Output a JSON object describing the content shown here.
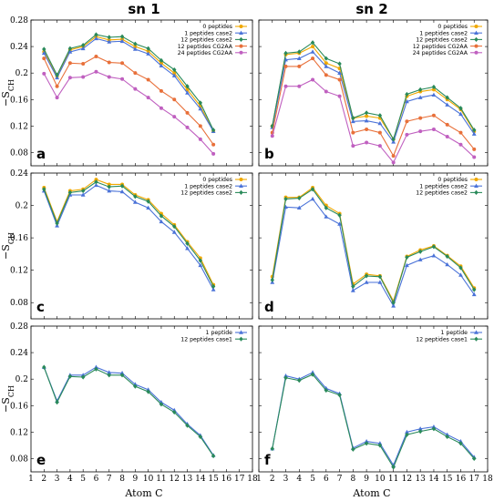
{
  "column_titles": [
    "sn 1",
    "sn 2"
  ],
  "ylabel": "−S",
  "ylabel_sub": "CH",
  "xlabel": "Atom C",
  "series_styles": {
    "0 peptides": {
      "color": "#f0a800",
      "marker": "circle"
    },
    "1 peptides case2": {
      "color": "#4a72d8",
      "marker": "triangle"
    },
    "12 peptides case2": {
      "color": "#2a8a5a",
      "marker": "diamond"
    },
    "12 peptides CG2AA": {
      "color": "#e8703a",
      "marker": "circle"
    },
    "24 peptides CG2AA": {
      "color": "#c060c0",
      "marker": "circle"
    },
    "1 peptide": {
      "color": "#4a72d8",
      "marker": "triangle"
    },
    "12 peptides case1": {
      "color": "#2a8a5a",
      "marker": "diamond"
    }
  },
  "chart_data": [
    {
      "type": "line",
      "panel": "a",
      "xlim": [
        1,
        18
      ],
      "ylim": [
        0.06,
        0.28
      ],
      "xticks": [
        1,
        2,
        3,
        4,
        5,
        6,
        7,
        8,
        9,
        10,
        11,
        12,
        13,
        14,
        15,
        16,
        17,
        18
      ],
      "yticks": [
        0.08,
        0.12,
        0.16,
        0.2,
        0.24,
        0.28
      ],
      "ytick_labels": [
        "0.08",
        "0.12",
        "0.16",
        "0.2",
        "0.24",
        "0.28"
      ],
      "x": [
        2,
        3,
        4,
        5,
        6,
        7,
        8,
        9,
        10,
        11,
        12,
        13,
        14,
        15
      ],
      "legend_position": "top-right",
      "series": [
        {
          "name": "0 peptides",
          "values": [
            0.232,
            0.195,
            0.235,
            0.24,
            0.255,
            0.25,
            0.251,
            0.24,
            0.233,
            0.215,
            0.2,
            0.175,
            0.15,
            0.112
          ]
        },
        {
          "name": "1 peptides case2",
          "values": [
            0.23,
            0.193,
            0.232,
            0.237,
            0.252,
            0.247,
            0.248,
            0.236,
            0.229,
            0.211,
            0.196,
            0.17,
            0.146,
            0.112
          ]
        },
        {
          "name": "12 peptides case2",
          "values": [
            0.236,
            0.197,
            0.237,
            0.242,
            0.258,
            0.254,
            0.255,
            0.244,
            0.237,
            0.219,
            0.205,
            0.18,
            0.155,
            0.114
          ]
        },
        {
          "name": "12 peptides CG2AA",
          "values": [
            0.222,
            0.18,
            0.215,
            0.214,
            0.225,
            0.216,
            0.215,
            0.2,
            0.19,
            0.173,
            0.16,
            0.14,
            0.12,
            0.092
          ]
        },
        {
          "name": "24 peptides CG2AA",
          "values": [
            0.199,
            0.163,
            0.193,
            0.194,
            0.202,
            0.194,
            0.191,
            0.176,
            0.163,
            0.147,
            0.134,
            0.118,
            0.1,
            0.078
          ]
        }
      ]
    },
    {
      "type": "line",
      "panel": "b",
      "xlim": [
        1,
        18
      ],
      "ylim": [
        0.06,
        0.28
      ],
      "xticks": [
        1,
        2,
        3,
        4,
        5,
        6,
        7,
        8,
        9,
        10,
        11,
        12,
        13,
        14,
        15,
        16,
        17,
        18
      ],
      "yticks": [
        0.08,
        0.12,
        0.16,
        0.2,
        0.24,
        0.28
      ],
      "x": [
        2,
        3,
        4,
        5,
        6,
        7,
        8,
        9,
        10,
        11,
        12,
        13,
        14,
        15,
        16,
        17
      ],
      "legend_position": "top-right",
      "series": [
        {
          "name": "0 peptides",
          "values": [
            0.12,
            0.228,
            0.23,
            0.24,
            0.215,
            0.207,
            0.132,
            0.135,
            0.132,
            0.1,
            0.165,
            0.172,
            0.175,
            0.16,
            0.145,
            0.112
          ]
        },
        {
          "name": "1 peptides case2",
          "values": [
            0.118,
            0.22,
            0.222,
            0.232,
            0.21,
            0.2,
            0.127,
            0.128,
            0.124,
            0.096,
            0.157,
            0.163,
            0.167,
            0.152,
            0.138,
            0.108
          ]
        },
        {
          "name": "12 peptides case2",
          "values": [
            0.12,
            0.23,
            0.232,
            0.246,
            0.222,
            0.214,
            0.132,
            0.14,
            0.136,
            0.1,
            0.168,
            0.175,
            0.179,
            0.163,
            0.147,
            0.114
          ]
        },
        {
          "name": "12 peptides CG2AA",
          "values": [
            0.11,
            0.21,
            0.21,
            0.222,
            0.197,
            0.19,
            0.11,
            0.115,
            0.11,
            0.075,
            0.127,
            0.132,
            0.136,
            0.122,
            0.11,
            0.085
          ]
        },
        {
          "name": "24 peptides CG2AA",
          "values": [
            0.105,
            0.18,
            0.18,
            0.19,
            0.172,
            0.165,
            0.09,
            0.095,
            0.09,
            0.065,
            0.107,
            0.112,
            0.115,
            0.104,
            0.092,
            0.073
          ]
        }
      ]
    },
    {
      "type": "line",
      "panel": "c",
      "xlim": [
        1,
        18
      ],
      "ylim": [
        0.06,
        0.24
      ],
      "xticks": [
        1,
        2,
        3,
        4,
        5,
        6,
        7,
        8,
        9,
        10,
        11,
        12,
        13,
        14,
        15,
        16,
        17,
        18
      ],
      "yticks": [
        0.08,
        0.12,
        0.16,
        0.2,
        0.24
      ],
      "x": [
        2,
        3,
        4,
        5,
        6,
        7,
        8,
        9,
        10,
        11,
        12,
        13,
        14,
        15
      ],
      "legend_position": "top-right",
      "series": [
        {
          "name": "0 peptides",
          "values": [
            0.222,
            0.18,
            0.218,
            0.22,
            0.232,
            0.226,
            0.226,
            0.213,
            0.207,
            0.19,
            0.176,
            0.155,
            0.135,
            0.102
          ]
        },
        {
          "name": "1 peptides case2",
          "values": [
            0.218,
            0.175,
            0.213,
            0.213,
            0.225,
            0.218,
            0.217,
            0.204,
            0.197,
            0.18,
            0.167,
            0.147,
            0.126,
            0.096
          ]
        },
        {
          "name": "12 peptides case2",
          "values": [
            0.22,
            0.178,
            0.216,
            0.218,
            0.229,
            0.223,
            0.224,
            0.211,
            0.205,
            0.187,
            0.174,
            0.153,
            0.132,
            0.1
          ]
        }
      ]
    },
    {
      "type": "line",
      "panel": "d",
      "xlim": [
        1,
        18
      ],
      "ylim": [
        0.06,
        0.24
      ],
      "xticks": [
        1,
        2,
        3,
        4,
        5,
        6,
        7,
        8,
        9,
        10,
        11,
        12,
        13,
        14,
        15,
        16,
        17,
        18
      ],
      "yticks": [
        0.08,
        0.12,
        0.16,
        0.2,
        0.24
      ],
      "x": [
        2,
        3,
        4,
        5,
        6,
        7,
        8,
        9,
        10,
        11,
        12,
        13,
        14,
        15,
        16,
        17
      ],
      "legend_position": "top-right",
      "series": [
        {
          "name": "0 peptides",
          "values": [
            0.112,
            0.21,
            0.21,
            0.222,
            0.2,
            0.19,
            0.103,
            0.115,
            0.113,
            0.082,
            0.137,
            0.145,
            0.15,
            0.138,
            0.125,
            0.098
          ]
        },
        {
          "name": "1 peptides case2",
          "values": [
            0.105,
            0.198,
            0.197,
            0.208,
            0.186,
            0.177,
            0.095,
            0.105,
            0.105,
            0.076,
            0.126,
            0.133,
            0.138,
            0.127,
            0.114,
            0.09
          ]
        },
        {
          "name": "12 peptides case2",
          "values": [
            0.108,
            0.208,
            0.209,
            0.22,
            0.197,
            0.188,
            0.1,
            0.113,
            0.112,
            0.08,
            0.136,
            0.143,
            0.149,
            0.137,
            0.123,
            0.096
          ]
        }
      ]
    },
    {
      "type": "line",
      "panel": "e",
      "xlim": [
        1,
        18
      ],
      "ylim": [
        0.06,
        0.28
      ],
      "xticks": [
        1,
        2,
        3,
        4,
        5,
        6,
        7,
        8,
        9,
        10,
        11,
        12,
        13,
        14,
        15,
        16,
        17,
        18
      ],
      "yticks": [
        0.08,
        0.12,
        0.16,
        0.2,
        0.24,
        0.28
      ],
      "x": [
        2,
        3,
        4,
        5,
        6,
        7,
        8,
        9,
        10,
        11,
        12,
        13,
        14,
        15
      ],
      "legend_position": "top-right",
      "series": [
        {
          "name": "1 peptide",
          "values": [
            0.218,
            0.167,
            0.206,
            0.206,
            0.218,
            0.21,
            0.209,
            0.192,
            0.184,
            0.165,
            0.153,
            0.132,
            0.115,
            0.085
          ]
        },
        {
          "name": "12 peptides case1",
          "values": [
            0.218,
            0.165,
            0.204,
            0.203,
            0.215,
            0.206,
            0.206,
            0.189,
            0.181,
            0.162,
            0.15,
            0.13,
            0.113,
            0.084
          ]
        }
      ]
    },
    {
      "type": "line",
      "panel": "f",
      "xlim": [
        1,
        18
      ],
      "ylim": [
        0.06,
        0.28
      ],
      "xticks": [
        1,
        2,
        3,
        4,
        5,
        6,
        7,
        8,
        9,
        10,
        11,
        12,
        13,
        14,
        15,
        16,
        17,
        18
      ],
      "yticks": [
        0.08,
        0.12,
        0.16,
        0.2,
        0.24,
        0.28
      ],
      "x": [
        2,
        3,
        4,
        5,
        6,
        7,
        8,
        9,
        10,
        11,
        12,
        13,
        14,
        15,
        16,
        17
      ],
      "legend_position": "top-right",
      "series": [
        {
          "name": "1 peptide",
          "values": [
            0.095,
            0.205,
            0.2,
            0.21,
            0.186,
            0.178,
            0.096,
            0.106,
            0.103,
            0.07,
            0.12,
            0.125,
            0.128,
            0.116,
            0.106,
            0.082
          ]
        },
        {
          "name": "12 peptides case1",
          "values": [
            0.095,
            0.202,
            0.198,
            0.207,
            0.183,
            0.176,
            0.094,
            0.103,
            0.1,
            0.067,
            0.116,
            0.121,
            0.125,
            0.113,
            0.103,
            0.08
          ]
        }
      ]
    }
  ]
}
